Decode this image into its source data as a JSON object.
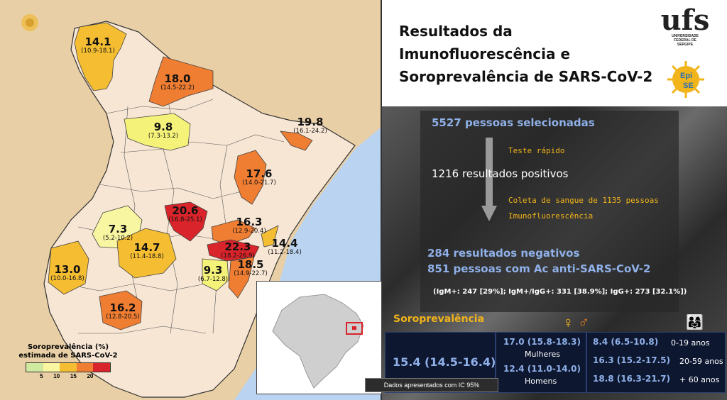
{
  "map": {
    "regions": [
      {
        "value": "14.1",
        "ci": "(10.9-18.1)",
        "color": "#f4bd32"
      },
      {
        "value": "18.0",
        "ci": "(14.5-22.2)",
        "color": "#ef7d32"
      },
      {
        "value": "9.8",
        "ci": "(7.3-13.2)",
        "color": "#f5f27a"
      },
      {
        "value": "19.8",
        "ci": "(16.1-24.2)",
        "color": "#ef7d32"
      },
      {
        "value": "17.6",
        "ci": "(14.0-21.7)",
        "color": "#ef7d32"
      },
      {
        "value": "20.6",
        "ci": "(16.8-25.1)",
        "color": "#d8242a"
      },
      {
        "value": "7.3",
        "ci": "(5.2-10.2)",
        "color": "#f8f6a0"
      },
      {
        "value": "14.7",
        "ci": "(11.4-18.8)",
        "color": "#f4bd32"
      },
      {
        "value": "16.3",
        "ci": "(12.9-20.4)",
        "color": "#ef7d32"
      },
      {
        "value": "22.3",
        "ci": "(18.2-26.9)",
        "color": "#d8242a"
      },
      {
        "value": "14.4",
        "ci": "(11.2-18.4)",
        "color": "#f4bd32"
      },
      {
        "value": "13.0",
        "ci": "(10.0-16.8)",
        "color": "#f4bd32"
      },
      {
        "value": "9.3",
        "ci": "(6.7-12.8)",
        "color": "#f5f27a"
      },
      {
        "value": "18.5",
        "ci": "(14.9-22.7)",
        "color": "#ef7d32"
      },
      {
        "value": "16.2",
        "ci": "(12.8-20.5)",
        "color": "#ef7d32"
      }
    ],
    "legend": {
      "title_line1": "Soroprevalência (%)",
      "title_line2": "estimada de SARS-CoV-2",
      "ticks": [
        "5",
        "10",
        "15",
        "20"
      ],
      "colors": [
        "#cfe9a0",
        "#f8f6a0",
        "#f4bd32",
        "#ef7d32",
        "#d8242a"
      ]
    }
  },
  "header": {
    "title_line1": "Resultados da",
    "title_line2": "Imunofluorescência e",
    "title_line3": "Soroprevalência de SARS-CoV-2",
    "ufs_logo": "ufs",
    "ufs_sub1": "UNIVERSIDADE",
    "ufs_sub2": "FEDERAL DE",
    "ufs_sub3": "SERGIPE",
    "epi_logo_line1": "Epi",
    "epi_logo_line2": "SE"
  },
  "flow": {
    "selected": "5527 pessoas selecionadas",
    "step1": "Teste rápido",
    "positives": "1216 resultados positivos",
    "step2a": "Coleta de sangue de 1135 pessoas",
    "step2b": "Imunofluorescência",
    "negatives": "284 resultados negativos",
    "antibodies": "851 pessoas com Ac anti-SARS-CoV-2",
    "breakdown": "(IgM+: 247 [29%]; IgM+/IgG+: 331 [38.9%]; IgG+: 273 [32.1%])"
  },
  "soro": {
    "title": "Soroprevalência",
    "overall": "15.4 (14.5-16.4)",
    "women_value": "17.0 (15.8-18.3)",
    "women_label": "Mulheres",
    "men_value": "12.4 (11.0-14.0)",
    "men_label": "Homens",
    "ages": [
      {
        "value": "8.4 (6.5-10.8)",
        "label": "0-19 anos"
      },
      {
        "value": "16.3 (15.2-17.5)",
        "label": "20-59 anos"
      },
      {
        "value": "18.8 (16.3-21.7)",
        "label": "+ 60 anos"
      }
    ],
    "note": "Dados apresentados com IC 95%"
  },
  "colors": {
    "sea": "#b9d3f0",
    "land": "#f7e6d4",
    "outside": "#e9cfa6",
    "accent": "#f1b41a",
    "stat_blue": "#8fb0e8"
  }
}
